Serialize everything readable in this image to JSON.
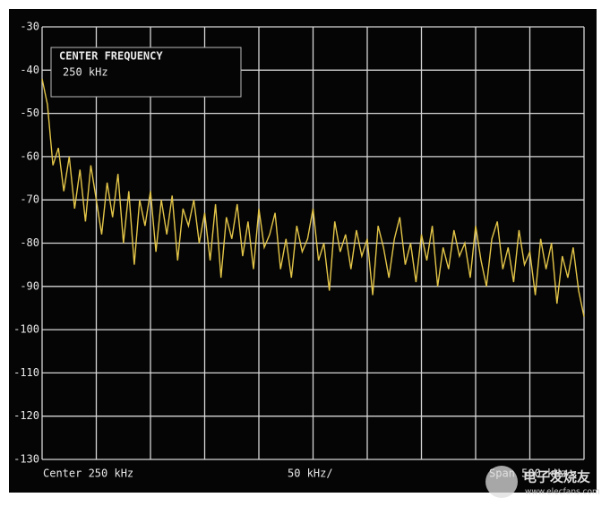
{
  "chart_data": {
    "type": "line",
    "marker_box": {
      "title": "CENTER FREQUENCY",
      "value": "250 kHz"
    },
    "footer": {
      "center": "Center 250 kHz",
      "per_division": "50 kHz/",
      "span": "Span 500 kHz"
    },
    "watermark": {
      "name": "电子发烧友",
      "url": "www.elecfans.com"
    },
    "xlim": [
      0,
      500
    ],
    "xticks": [
      0,
      50,
      100,
      150,
      200,
      250,
      300,
      350,
      400,
      450,
      500
    ],
    "ylim": [
      -130,
      -30
    ],
    "yticks": [
      -30,
      -40,
      -50,
      -60,
      -70,
      -80,
      -90,
      -100,
      -110,
      -120,
      -130
    ],
    "grid": true,
    "x": [
      0,
      5,
      10,
      15,
      20,
      25,
      30,
      35,
      40,
      45,
      50,
      55,
      60,
      65,
      70,
      75,
      80,
      85,
      90,
      95,
      100,
      105,
      110,
      115,
      120,
      125,
      130,
      135,
      140,
      145,
      150,
      155,
      160,
      165,
      170,
      175,
      180,
      185,
      190,
      195,
      200,
      205,
      210,
      215,
      220,
      225,
      230,
      235,
      240,
      245,
      250,
      255,
      260,
      265,
      270,
      275,
      280,
      285,
      290,
      295,
      300,
      305,
      310,
      315,
      320,
      325,
      330,
      335,
      340,
      345,
      350,
      355,
      360,
      365,
      370,
      375,
      380,
      385,
      390,
      395,
      400,
      405,
      410,
      415,
      420,
      425,
      430,
      435,
      440,
      445,
      450,
      455,
      460,
      465,
      470,
      475,
      480,
      485,
      490,
      495,
      500
    ],
    "series": [
      {
        "color": "#e3c548",
        "values": [
          -42,
          -48,
          -62,
          -58,
          -68,
          -60,
          -72,
          -63,
          -75,
          -62,
          -70,
          -78,
          -66,
          -74,
          -64,
          -80,
          -68,
          -85,
          -70,
          -76,
          -68,
          -82,
          -70,
          -78,
          -69,
          -84,
          -72,
          -76,
          -70,
          -80,
          -73,
          -84,
          -71,
          -88,
          -74,
          -79,
          -71,
          -83,
          -75,
          -86,
          -72,
          -81,
          -78,
          -73,
          -86,
          -79,
          -88,
          -76,
          -82,
          -79,
          -72,
          -84,
          -80,
          -91,
          -75,
          -82,
          -78,
          -86,
          -77,
          -83,
          -79,
          -92,
          -76,
          -81,
          -88,
          -79,
          -74,
          -85,
          -80,
          -89,
          -78,
          -84,
          -76,
          -90,
          -81,
          -86,
          -77,
          -83,
          -80,
          -88,
          -76,
          -84,
          -90,
          -79,
          -75,
          -86,
          -81,
          -89,
          -77,
          -85,
          -82,
          -92,
          -79,
          -86,
          -80,
          -94,
          -83,
          -88,
          -81,
          -91,
          -97
        ]
      }
    ]
  }
}
